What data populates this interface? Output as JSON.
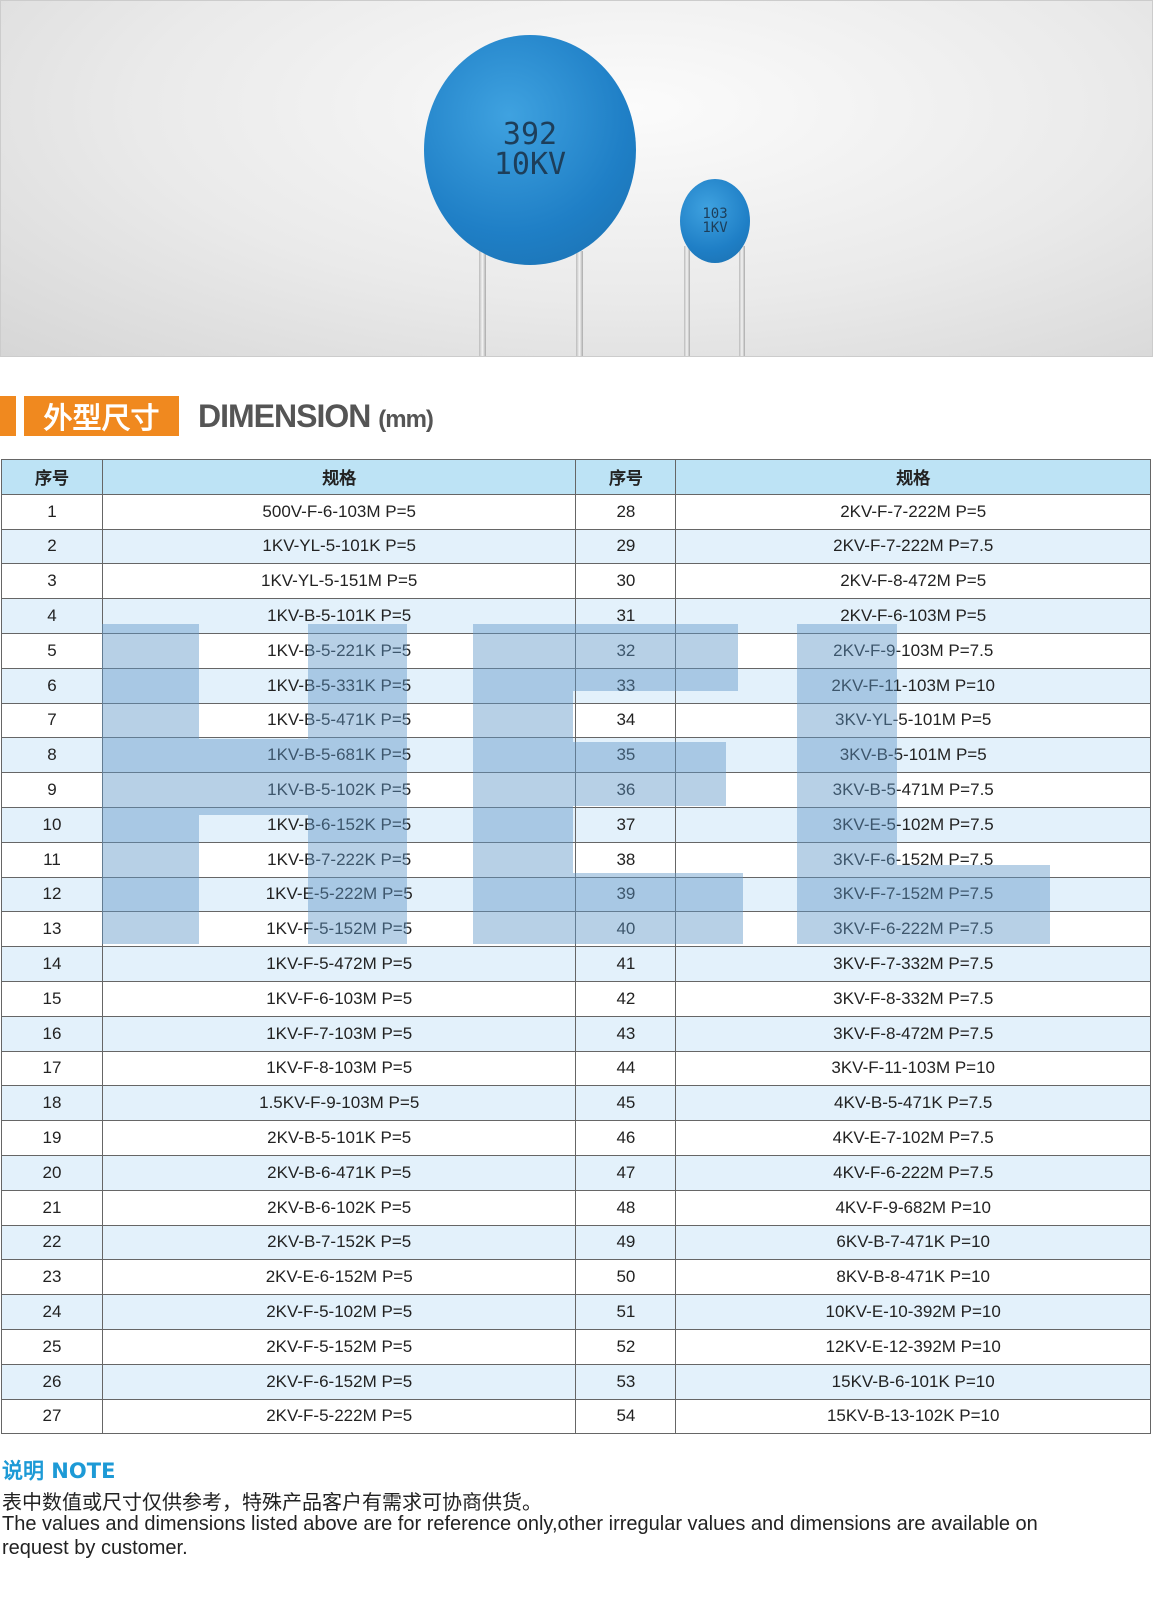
{
  "photo": {
    "large_cap": {
      "line1": "392",
      "line2": "10KV"
    },
    "small_cap": {
      "line1": "103",
      "line2": "1KV"
    },
    "cap_color": "#1f7fc6"
  },
  "section": {
    "title_cn": "外型尺寸",
    "title_en": "DIMENSION",
    "unit": "(mm)",
    "accent": "#f0891f"
  },
  "table": {
    "headers": [
      "序号",
      "规格",
      "序号",
      "规格"
    ],
    "header_color": "#bde3f5",
    "stripe_color": "#e3f1fb",
    "rows": [
      [
        "1",
        "500V-F-6-103M P=5",
        "28",
        "2KV-F-7-222M P=5"
      ],
      [
        "2",
        "1KV-YL-5-101K P=5",
        "29",
        "2KV-F-7-222M P=7.5"
      ],
      [
        "3",
        "1KV-YL-5-151M P=5",
        "30",
        "2KV-F-8-472M P=5"
      ],
      [
        "4",
        "1KV-B-5-101K P=5",
        "31",
        "2KV-F-6-103M P=5"
      ],
      [
        "5",
        "1KV-B-5-221K P=5",
        "32",
        "2KV-F-9-103M P=7.5"
      ],
      [
        "6",
        "1KV-B-5-331K P=5",
        "33",
        "2KV-F-11-103M P=10"
      ],
      [
        "7",
        "1KV-B-5-471K P=5",
        "34",
        "3KV-YL-5-101M P=5"
      ],
      [
        "8",
        "1KV-B-5-681K P=5",
        "35",
        "3KV-B-5-101M P=5"
      ],
      [
        "9",
        "1KV-B-5-102K P=5",
        "36",
        "3KV-B-5-471M P=7.5"
      ],
      [
        "10",
        "1KV-B-6-152K P=5",
        "37",
        "3KV-E-5-102M P=7.5"
      ],
      [
        "11",
        "1KV-B-7-222K P=5",
        "38",
        "3KV-F-6-152M P=7.5"
      ],
      [
        "12",
        "1KV-E-5-222M P=5",
        "39",
        "3KV-F-7-152M P=7.5"
      ],
      [
        "13",
        "1KV-F-5-152M P=5",
        "40",
        "3KV-F-6-222M P=7.5"
      ],
      [
        "14",
        "1KV-F-5-472M P=5",
        "41",
        "3KV-F-7-332M P=7.5"
      ],
      [
        "15",
        "1KV-F-6-103M P=5",
        "42",
        "3KV-F-8-332M P=7.5"
      ],
      [
        "16",
        "1KV-F-7-103M P=5",
        "43",
        "3KV-F-8-472M P=7.5"
      ],
      [
        "17",
        "1KV-F-8-103M P=5",
        "44",
        "3KV-F-11-103M P=10"
      ],
      [
        "18",
        "1.5KV-F-9-103M P=5",
        "45",
        "4KV-B-5-471K P=7.5"
      ],
      [
        "19",
        "2KV-B-5-101K P=5",
        "46",
        "4KV-E-7-102M P=7.5"
      ],
      [
        "20",
        "2KV-B-6-471K P=5",
        "47",
        "4KV-F-6-222M P=7.5"
      ],
      [
        "21",
        "2KV-B-6-102K P=5",
        "48",
        "4KV-F-9-682M P=10"
      ],
      [
        "22",
        "2KV-B-7-152K P=5",
        "49",
        "6KV-B-7-471K P=10"
      ],
      [
        "23",
        "2KV-E-6-152M P=5",
        "50",
        "8KV-B-8-471K P=10"
      ],
      [
        "24",
        "2KV-F-5-102M P=5",
        "51",
        "10KV-E-10-392M P=10"
      ],
      [
        "25",
        "2KV-F-5-152M P=5",
        "52",
        "12KV-E-12-392M P=10"
      ],
      [
        "26",
        "2KV-F-6-152M P=5",
        "53",
        "15KV-B-6-101K P=10"
      ],
      [
        "27",
        "2KV-F-5-222M P=5",
        "54",
        "15KV-B-13-102K P=10"
      ]
    ]
  },
  "note": {
    "heading": "说明 NOTE",
    "heading_color": "#1d9ad6",
    "text_cn": "表中数值或尺寸仅供参考，特殊产品客户有需求可协商供货。",
    "text_en": "The values and dimensions listed above are for reference only,other irregular values and dimensions are available on request  by customer."
  }
}
